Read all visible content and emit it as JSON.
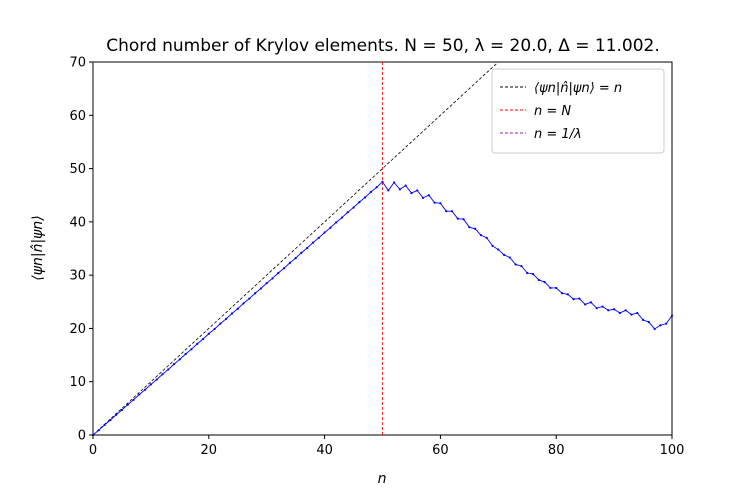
{
  "chart_data": {
    "type": "line",
    "title": "Chord number of Krylov elements. N = 50, λ = 20.0, Δ = 11.002.",
    "xlabel": "n",
    "ylabel": "⟨ψn|n̂|ψn⟩",
    "xlim": [
      0,
      100
    ],
    "ylim": [
      0,
      70
    ],
    "xticks": [
      0,
      20,
      40,
      60,
      80,
      100
    ],
    "yticks": [
      0,
      10,
      20,
      30,
      40,
      50,
      60,
      70
    ],
    "grid": false,
    "legend_position": "top-right",
    "legend": [
      {
        "label": "⟨ψn|n̂|ψn⟩ = n",
        "color": "#000000",
        "style": "dashed"
      },
      {
        "label": "n = N",
        "color": "#ff0000",
        "style": "dashed"
      },
      {
        "label": "n = 1/λ",
        "color": "#9a1fa6",
        "style": "dashed"
      }
    ],
    "reference_lines": [
      {
        "kind": "identity",
        "x": [
          0,
          100
        ],
        "y": [
          0,
          100
        ],
        "color": "#000000"
      },
      {
        "kind": "vertical",
        "x": 50,
        "color": "#ff0000"
      },
      {
        "kind": "vertical",
        "x": 0.05,
        "color": "#9a1fa6"
      }
    ],
    "series": [
      {
        "color": "#0000ff",
        "x": [
          0,
          1,
          2,
          3,
          4,
          5,
          6,
          7,
          8,
          9,
          10,
          11,
          12,
          13,
          14,
          15,
          16,
          17,
          18,
          19,
          20,
          21,
          22,
          23,
          24,
          25,
          26,
          27,
          28,
          29,
          30,
          31,
          32,
          33,
          34,
          35,
          36,
          37,
          38,
          39,
          40,
          41,
          42,
          43,
          44,
          45,
          46,
          47,
          48,
          49,
          50,
          51,
          52,
          53,
          54,
          55,
          56,
          57,
          58,
          59,
          60,
          61,
          62,
          63,
          64,
          65,
          66,
          67,
          68,
          69,
          70,
          71,
          72,
          73,
          74,
          75,
          76,
          77,
          78,
          79,
          80,
          81,
          82,
          83,
          84,
          85,
          86,
          87,
          88,
          89,
          90,
          91,
          92,
          93,
          94,
          95,
          96,
          97,
          98,
          99,
          100
        ],
        "y": [
          0,
          0.9,
          1.9,
          2.8,
          3.8,
          4.7,
          5.7,
          6.6,
          7.6,
          8.5,
          9.5,
          10.4,
          11.4,
          12.3,
          13.3,
          14.2,
          15.2,
          16.1,
          17.1,
          18.0,
          19.0,
          19.9,
          20.9,
          21.8,
          22.8,
          23.7,
          24.7,
          25.6,
          26.6,
          27.5,
          28.5,
          29.4,
          30.4,
          31.3,
          32.3,
          33.2,
          34.2,
          35.1,
          36.1,
          37.0,
          38.0,
          38.9,
          39.9,
          40.8,
          41.8,
          42.7,
          43.7,
          44.6,
          45.6,
          46.5,
          47.5,
          45.9,
          47.4,
          46.1,
          46.8,
          45.4,
          45.9,
          44.5,
          45.0,
          43.6,
          43.5,
          42.0,
          42.0,
          40.6,
          40.5,
          39.0,
          38.7,
          37.5,
          37.0,
          35.5,
          34.8,
          33.8,
          33.3,
          32.0,
          31.7,
          30.4,
          30.2,
          29.1,
          28.7,
          27.6,
          27.6,
          26.6,
          26.4,
          25.5,
          25.6,
          24.5,
          24.9,
          23.8,
          24.1,
          23.4,
          23.6,
          22.9,
          23.4,
          22.6,
          22.9,
          21.6,
          21.2,
          19.9,
          20.6,
          20.9,
          22.4
        ]
      }
    ]
  }
}
